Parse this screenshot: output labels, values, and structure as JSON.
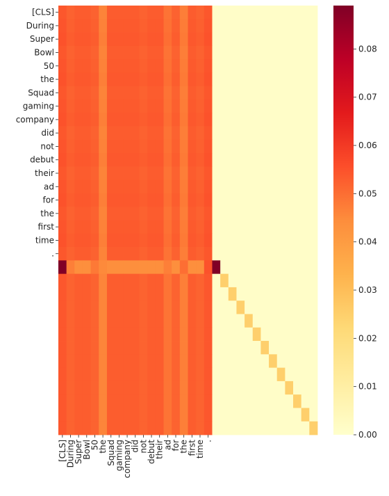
{
  "chart_data": {
    "type": "heatmap",
    "title": "",
    "xlabel": "",
    "ylabel": "",
    "y_tokens": [
      "[CLS]",
      "During",
      "Super",
      "Bowl",
      "50",
      "the",
      "Squad",
      "gaming",
      "company",
      "did",
      "not",
      "debut",
      "their",
      "ad",
      "for",
      "the",
      "first",
      "time",
      "."
    ],
    "x_tokens": [
      "[CLS]",
      "During",
      "Super",
      "Bowl",
      "50",
      "the",
      "Squad",
      "gaming",
      "company",
      "did",
      "not",
      "debut",
      "their",
      "ad",
      "for",
      "the",
      "first",
      "time",
      "."
    ],
    "n_rows": 32,
    "n_cols": 32,
    "colormap": "YlOrRd",
    "colorbar": {
      "min": 0.0,
      "max": 0.089,
      "ticks": [
        0.0,
        0.01,
        0.02,
        0.03,
        0.04,
        0.05,
        0.06,
        0.07,
        0.08
      ],
      "tick_labels": [
        "0.00",
        "0.01",
        "0.02",
        "0.03",
        "0.04",
        "0.05",
        "0.06",
        "0.07",
        "0.08"
      ]
    },
    "column_values": [
      0.054,
      0.052,
      0.053,
      0.053,
      0.052,
      0.046,
      0.053,
      0.053,
      0.053,
      0.053,
      0.052,
      0.053,
      0.053,
      0.049,
      0.052,
      0.047,
      0.053,
      0.052,
      0.054
    ],
    "token_row_values": [
      0.055,
      0.053,
      0.054,
      0.054,
      0.053,
      0.047,
      0.054,
      0.054,
      0.054,
      0.054,
      0.053,
      0.054,
      0.054,
      0.05,
      0.053,
      0.048,
      0.054,
      0.053,
      0.055
    ],
    "separator_row_values": [
      0.089,
      0.047,
      0.044,
      0.044,
      0.048,
      0.045,
      0.044,
      0.044,
      0.044,
      0.044,
      0.044,
      0.044,
      0.044,
      0.047,
      0.044,
      0.05,
      0.044,
      0.044,
      0.055,
      0.089,
      0.001,
      0.001,
      0.001,
      0.001,
      0.001,
      0.001,
      0.001,
      0.001,
      0.001,
      0.001,
      0.001,
      0.001
    ],
    "padding_diagonal_value": 0.025,
    "padding_offdiag_value": 0.001
  }
}
